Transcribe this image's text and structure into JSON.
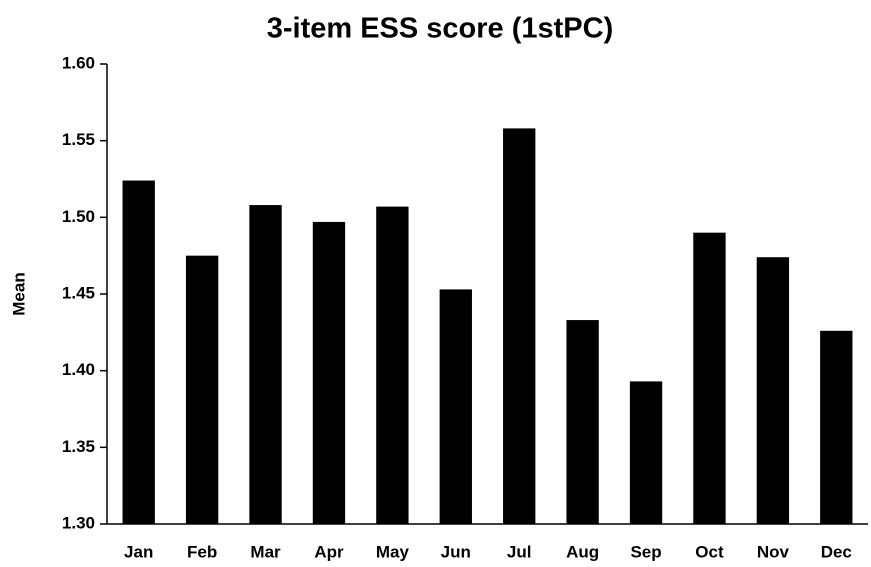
{
  "chart_data": {
    "type": "bar",
    "title": "3-item ESS score (1stPC)",
    "y_label": "Mean",
    "categories": [
      "Jan",
      "Feb",
      "Mar",
      "Apr",
      "May",
      "Jun",
      "Jul",
      "Aug",
      "Sep",
      "Oct",
      "Nov",
      "Dec"
    ],
    "values": [
      1.524,
      1.475,
      1.508,
      1.497,
      1.507,
      1.453,
      1.558,
      1.433,
      1.393,
      1.49,
      1.474,
      1.426
    ],
    "color": "#000000",
    "ylim": [
      1.3,
      1.6
    ],
    "yticks": [
      {
        "value": 1.3,
        "label": "1.30"
      },
      1.35,
      {
        "value": 1.4,
        "label": "1.40"
      },
      1.45,
      {
        "value": 1.5,
        "label": "1.50"
      },
      1.55,
      {
        "value": 1.6,
        "label": "1.60"
      }
    ],
    "grid": false
  }
}
